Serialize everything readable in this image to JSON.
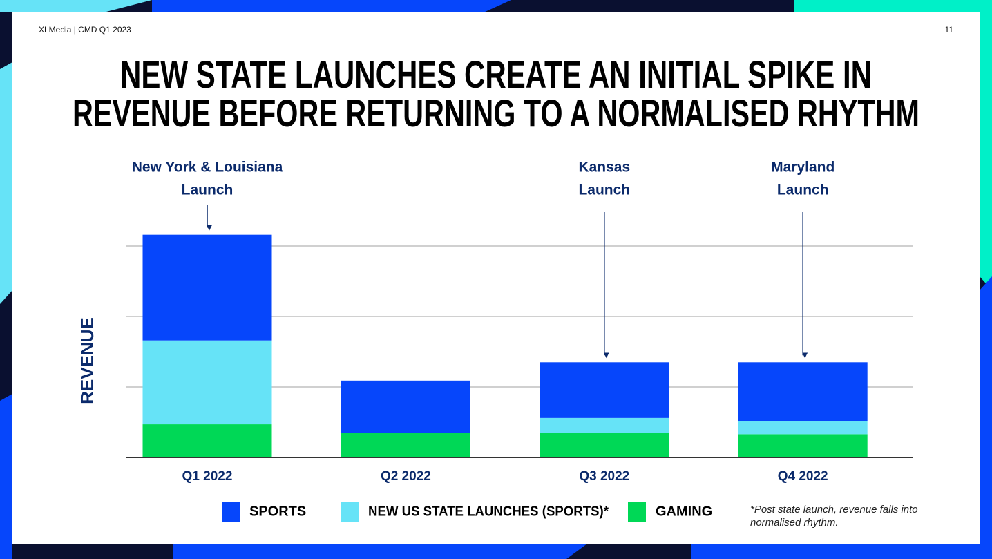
{
  "header": "XLMedia | CMD Q1 2023",
  "page_number": "11",
  "footnote": [
    "*Post state launch, revenue falls into",
    "normalised rhythm."
  ],
  "chart_data": {
    "type": "stacked_bar",
    "title": [
      "NEW STATE LAUNCHES CREATE AN INITIAL SPIKE IN",
      "REVENUE BEFORE RETURNING TO A NORMALISED RHYTHM"
    ],
    "y_label": "REVENUE",
    "categories": [
      "Q1 2022",
      "Q2 2022",
      "Q3 2022",
      "Q4 2022"
    ],
    "series": [
      {
        "name": "SPORTS",
        "color": "#0646fb",
        "values": [
          1.5,
          0.74,
          0.79,
          0.84
        ]
      },
      {
        "name": "NEW US STATE LAUNCHES (SPORTS)*",
        "color": "#66e3f7",
        "values": [
          1.19,
          0,
          0.21,
          0.18
        ]
      },
      {
        "name": "GAMING",
        "color": "#00d856",
        "values": [
          0.47,
          0.35,
          0.35,
          0.33
        ]
      }
    ],
    "ylim": [
      0,
      3.2
    ],
    "yticks": [
      0,
      1,
      2,
      3
    ],
    "show_ytick_labels": false,
    "grid": true,
    "annotations": [
      {
        "category": "Q1 2022",
        "lines": [
          "New York & Louisiana",
          "Launch"
        ]
      },
      {
        "category": "Q3 2022",
        "lines": [
          "Kansas",
          "Launch"
        ]
      },
      {
        "category": "Q4 2022",
        "lines": [
          "Maryland",
          "Launch"
        ]
      }
    ]
  }
}
